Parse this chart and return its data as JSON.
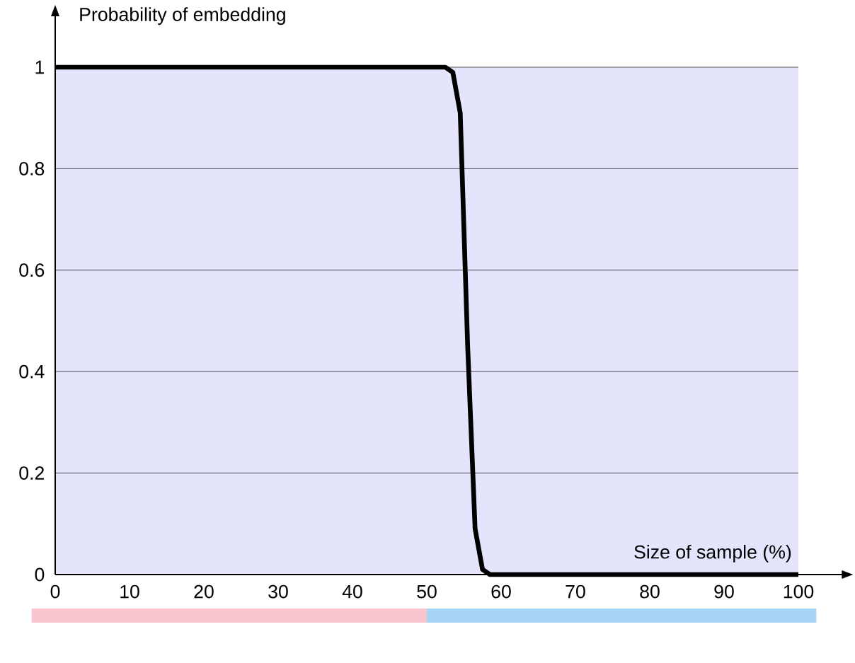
{
  "chart_data": {
    "type": "line",
    "xlabel": "Size of sample (%)",
    "ylabel": "Probability of embedding",
    "x": [
      0,
      52.5,
      53.5,
      54.5,
      55.5,
      56.5,
      57.5,
      58.5,
      100
    ],
    "series": [
      {
        "color": "#000000",
        "values": [
          1,
          1,
          0.99,
          0.91,
          0.45,
          0.09,
          0.01,
          0,
          0
        ]
      }
    ],
    "xlim": [
      0,
      100
    ],
    "ylim": [
      0,
      1
    ],
    "xticks": [
      0,
      10,
      20,
      30,
      40,
      50,
      60,
      70,
      80,
      90,
      100
    ],
    "yticks": [
      0,
      {
        "value": 0.2,
        "label": "0.2"
      },
      {
        "value": 0.4,
        "label": "0.4"
      },
      {
        "value": 0.6,
        "label": "0.6"
      },
      {
        "value": 0.8,
        "label": "0.8"
      },
      1
    ],
    "grid": "y",
    "marker": "none",
    "line_style": "solid"
  }
}
